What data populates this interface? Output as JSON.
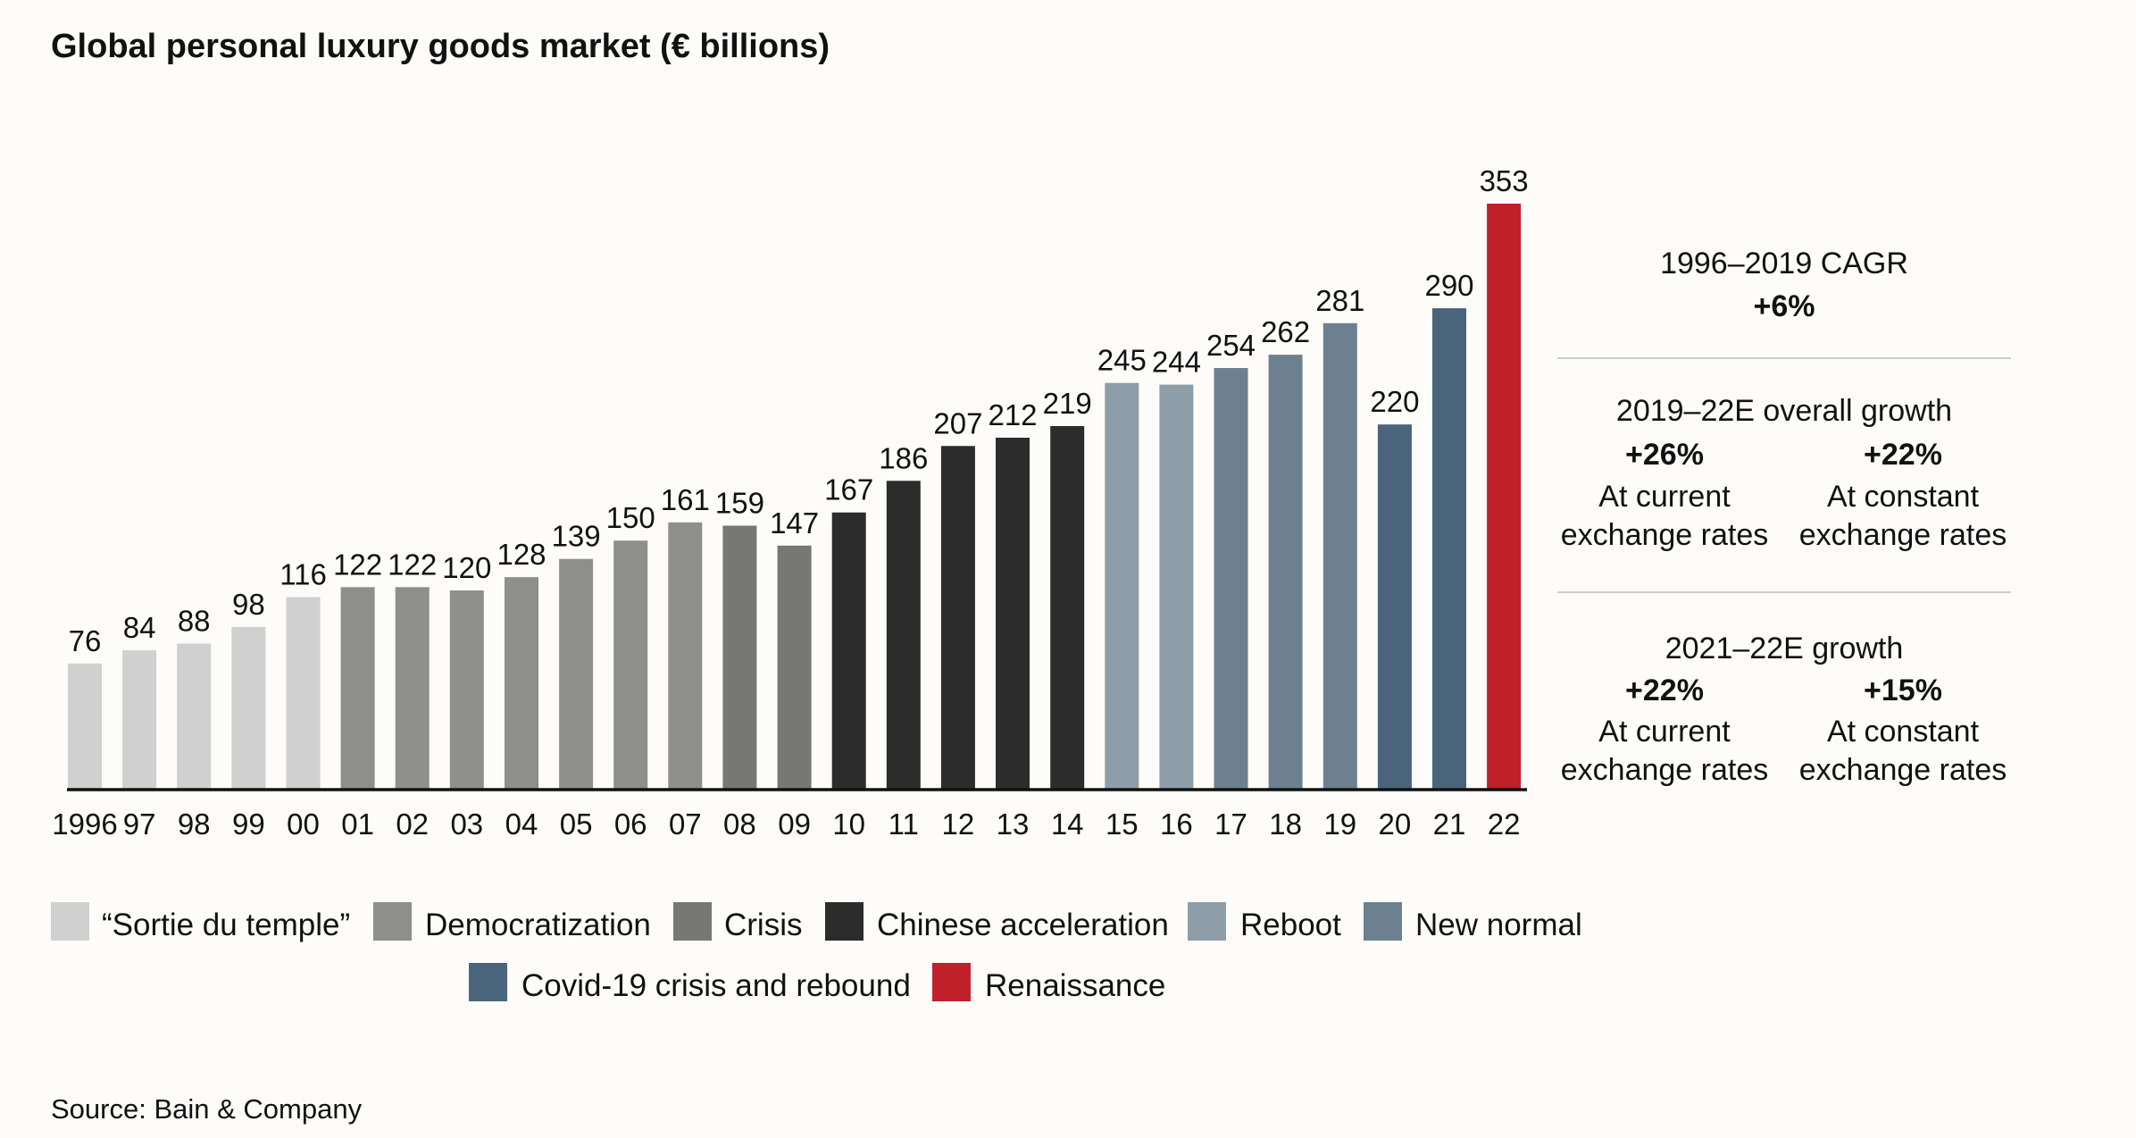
{
  "chart_data": {
    "type": "bar",
    "title": "Global personal luxury goods market (€ billions)",
    "categories": [
      "1996",
      "97",
      "98",
      "99",
      "00",
      "01",
      "02",
      "03",
      "04",
      "05",
      "06",
      "07",
      "08",
      "09",
      "10",
      "11",
      "12",
      "13",
      "14",
      "15",
      "16",
      "17",
      "18",
      "19",
      "20",
      "21",
      "22"
    ],
    "values": [
      76,
      84,
      88,
      98,
      116,
      122,
      122,
      120,
      128,
      139,
      150,
      161,
      159,
      147,
      167,
      186,
      207,
      212,
      219,
      245,
      244,
      254,
      262,
      281,
      220,
      290,
      353
    ],
    "phases": [
      0,
      0,
      0,
      0,
      0,
      1,
      1,
      1,
      1,
      1,
      1,
      1,
      2,
      2,
      3,
      3,
      3,
      3,
      3,
      4,
      4,
      5,
      5,
      5,
      6,
      6,
      7
    ],
    "ylim": [
      0,
      353
    ],
    "grid": false,
    "legend": {
      "placement": "bottom",
      "items": [
        {
          "label": "“Sortie du temple”",
          "color": "#d0d0d0"
        },
        {
          "label": "Democratization",
          "color": "#8e8e8b"
        },
        {
          "label": "Crisis",
          "color": "#777776"
        },
        {
          "label": "Chinese acceleration",
          "color": "#2c2c2c"
        },
        {
          "label": "Reboot",
          "color": "#8e9ea9"
        },
        {
          "label": "New normal",
          "color": "#6d8090"
        },
        {
          "label": "Covid-19 crisis and rebound",
          "color": "#4a647c"
        },
        {
          "label": "Renaissance",
          "color": "#c0202a"
        }
      ]
    }
  },
  "sidebar": {
    "cagr": {
      "label": "1996–2019 CAGR",
      "value": "+6%"
    },
    "overall": {
      "title": "2019–22E overall growth",
      "current_value": "+26%",
      "constant_value": "+22%"
    },
    "growth21": {
      "title": "2021–22E growth",
      "current_value": "+22%",
      "constant_value": "+15%"
    },
    "current_label_line1": "At current",
    "constant_label_line1": "At constant",
    "rates_line2": "exchange rates",
    "divider_color": "#cccccc"
  },
  "source": "Source: Bain & Company"
}
